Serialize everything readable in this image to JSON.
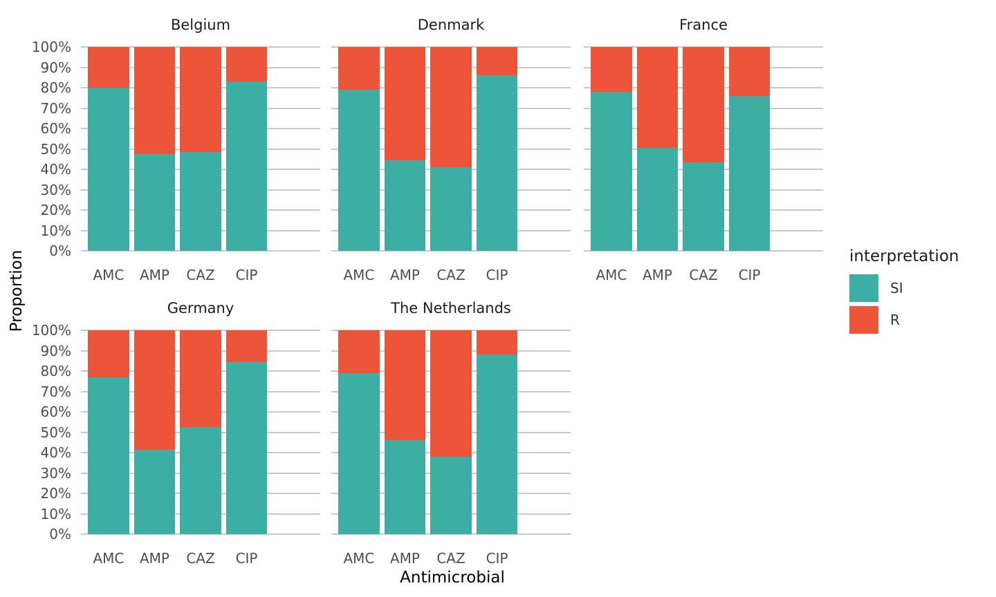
{
  "colors": {
    "si": "#3CAEA3",
    "r": "#ED553B",
    "gridline": "#C9C9C9",
    "tick_label": "#4D4D4D",
    "facet_title": "#1C1C1C",
    "axis_title": "#000000",
    "background": "#FFFFFF"
  },
  "axes": {
    "x_title": "Antimicrobial",
    "y_title": "Proportion",
    "y_tick_labels": [
      "100%",
      "90%",
      "80%",
      "70%",
      "60%",
      "50%",
      "40%",
      "30%",
      "20%",
      "10%",
      "0%"
    ]
  },
  "legend": {
    "title": "interpretation",
    "items": [
      {
        "label": "SI",
        "color": "#3CAEA3"
      },
      {
        "label": "R",
        "color": "#ED553B"
      }
    ]
  },
  "chart_data": {
    "type": "bar",
    "stacked": true,
    "normalized_percent": true,
    "orientation": "vertical",
    "xlabel": "Antimicrobial",
    "ylabel": "Proportion",
    "ylim": [
      0,
      100
    ],
    "grid": true,
    "legend_position": "right",
    "categories": [
      "AMC",
      "AMP",
      "CAZ",
      "CIP"
    ],
    "series_names": [
      "SI",
      "R"
    ],
    "facets": [
      {
        "name": "Belgium",
        "row": 0,
        "col": 0,
        "series": [
          {
            "name": "SI",
            "values": [
              80,
              47.5,
              48.5,
              83
            ]
          },
          {
            "name": "R",
            "values": [
              20,
              52.5,
              51.5,
              17
            ]
          }
        ]
      },
      {
        "name": "Denmark",
        "row": 0,
        "col": 1,
        "series": [
          {
            "name": "SI",
            "values": [
              79,
              44.5,
              41,
              86
            ]
          },
          {
            "name": "R",
            "values": [
              21,
              55.5,
              59,
              14
            ]
          }
        ]
      },
      {
        "name": "France",
        "row": 0,
        "col": 2,
        "series": [
          {
            "name": "SI",
            "values": [
              78,
              50.5,
              43.5,
              76
            ]
          },
          {
            "name": "R",
            "values": [
              22,
              49.5,
              56.5,
              24
            ]
          }
        ]
      },
      {
        "name": "Germany",
        "row": 1,
        "col": 0,
        "series": [
          {
            "name": "SI",
            "values": [
              77,
              41.5,
              52.5,
              84.5
            ]
          },
          {
            "name": "R",
            "values": [
              23,
              58.5,
              47.5,
              15.5
            ]
          }
        ]
      },
      {
        "name": "The Netherlands",
        "row": 1,
        "col": 1,
        "series": [
          {
            "name": "SI",
            "values": [
              79,
              46,
              38,
              88
            ]
          },
          {
            "name": "R",
            "values": [
              21,
              54,
              62,
              12
            ]
          }
        ]
      }
    ]
  }
}
